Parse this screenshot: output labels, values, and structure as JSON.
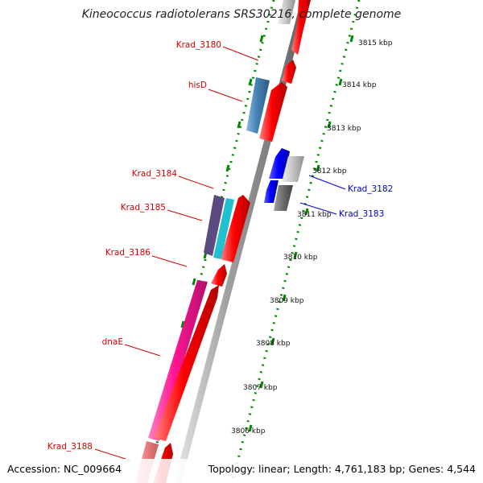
{
  "title": "Kineococcus radiotolerans SRS30216, complete genome",
  "accession": "Accession: NC_009664",
  "topology": "Topology: linear; Length: 4,761,183 bp; Genes: 4,544",
  "scale_labels": [
    "3815 kbp",
    "3814 kbp",
    "3813 kbp",
    "3812 kbp",
    "3811 kbp",
    "3810 kbp",
    "3809 kbp",
    "3808 kbp",
    "3807 kbp",
    "3806 kbp"
  ],
  "gene_labels_left": [
    "Krad_3180",
    "hisD",
    "Krad_3184",
    "Krad_3185",
    "Krad_3186",
    "dnaE",
    "Krad_3188"
  ],
  "gene_labels_right": [
    "Krad_3182",
    "Krad_3183"
  ],
  "colors": {
    "forward": "#ff0000",
    "reverse_blue": "#0000ff",
    "label_red": "#d40000",
    "label_blue": "#0000cc",
    "dots": "#008800"
  }
}
